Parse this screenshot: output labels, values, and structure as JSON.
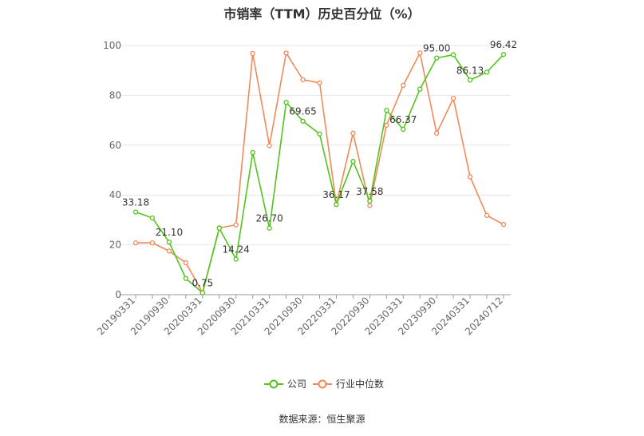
{
  "chart_data": {
    "type": "line",
    "title": "市销率（TTM）历史百分位（%）",
    "source": "数据来源：恒生聚源",
    "ylim": [
      0,
      100
    ],
    "yticks": [
      0,
      20,
      40,
      60,
      80,
      100
    ],
    "x_tick_labels": [
      "20190331",
      "20190930",
      "20200331",
      "20200930",
      "20210331",
      "20210930",
      "20220331",
      "20220930",
      "20230331",
      "20230930",
      "20240331",
      "20240712"
    ],
    "x_tick_positions": [
      0,
      2,
      4,
      6,
      8,
      10,
      12,
      14,
      16,
      18,
      20,
      22
    ],
    "legend_position": "bottom-center",
    "grid": true,
    "series": [
      {
        "name": "公司",
        "color": "#52c41a",
        "values": [
          33.18,
          30.8,
          21.1,
          6.5,
          0.75,
          26.7,
          14.24,
          57.0,
          26.7,
          77.2,
          69.65,
          64.5,
          36.17,
          53.5,
          37.58,
          74.0,
          66.37,
          82.5,
          95.0,
          96.3,
          86.13,
          89.3,
          96.42
        ],
        "labels": {
          "0": "33.18",
          "2": "21.10",
          "4": "0.75",
          "6": "14.24",
          "8": "26.70",
          "10": "69.65",
          "12": "36.17",
          "14": "37.58",
          "16": "66.37",
          "18": "95.00",
          "20": "86.13",
          "22": "96.42"
        }
      },
      {
        "name": "行业中位数",
        "color": "#f2895a",
        "values": [
          20.8,
          20.8,
          17.5,
          12.8,
          0.8,
          26.8,
          28.0,
          96.8,
          59.8,
          97.0,
          86.3,
          85.0,
          36.2,
          64.8,
          35.8,
          68.0,
          84.0,
          97.0,
          64.8,
          78.8,
          47.3,
          31.8,
          28.2
        ]
      }
    ]
  }
}
